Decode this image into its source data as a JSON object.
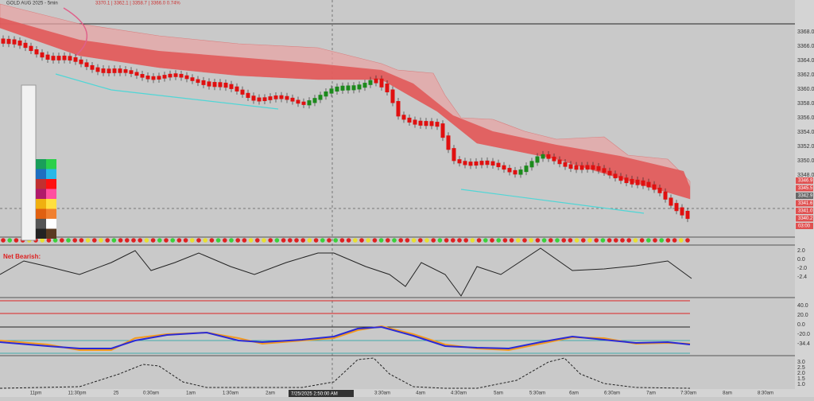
{
  "header": {
    "title": "GOLD AUG 2025 - 5min",
    "quote": "3370.1 | 3362.1 | 3358.7 | 3366.0  0.74%"
  },
  "price_axis": {
    "labels": [
      "3368.0",
      "3366.0",
      "3364.0",
      "3362.0",
      "3360.0",
      "3358.0",
      "3356.0",
      "3354.0",
      "3352.0",
      "3350.0",
      "3348.0"
    ],
    "tags": [
      "3346.9",
      "3345.5",
      "3342.9",
      "3341.6",
      "3341.0",
      "3340.2",
      "03:00"
    ]
  },
  "panel_labels": {
    "status": "Net Bearish:",
    "osc1": [
      "2.0",
      "0.0",
      "-2.0",
      "-2.4"
    ],
    "osc2": [
      "40.0",
      "20.0",
      "0.0",
      "-20.0",
      "-34.4"
    ],
    "osc3": [
      "3.0",
      "2.5",
      "2.0",
      "1.5",
      "1.0"
    ]
  },
  "time_axis": {
    "labels": [
      "11pm",
      "11:30pm",
      "25",
      "0:30am",
      "1am",
      "1:30am",
      "2am",
      "3:30am",
      "4am",
      "4:30am",
      "5am",
      "5:30am",
      "6am",
      "6:30am",
      "7am",
      "7:30am",
      "8am",
      "8:30am"
    ],
    "crosshair": "7/25/2025 2:50:00 AM"
  }
}
